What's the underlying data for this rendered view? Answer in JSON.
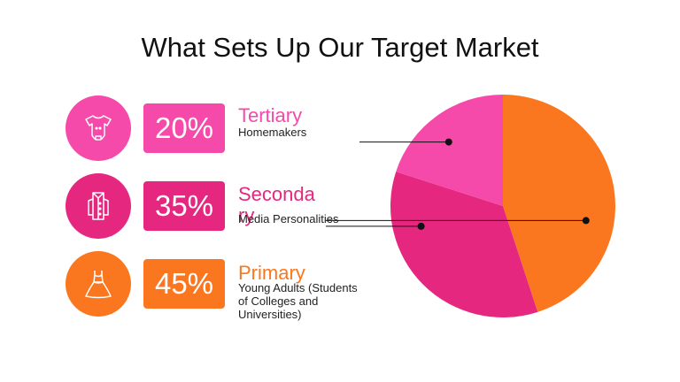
{
  "title": "What Sets Up Our Target Market",
  "segments": [
    {
      "percent": "20%",
      "category": "Tertiary",
      "description": "Homemakers",
      "color": "#f54aaa",
      "icon": "baby-onesie-icon"
    },
    {
      "percent": "35%",
      "category": "Seconda ry",
      "description": "Media Personalities",
      "color": "#e5277f",
      "icon": "shirt-icon"
    },
    {
      "percent": "45%",
      "category": "Primary",
      "description": "Young Adults (Students of Colleges and Universities)",
      "color": "#fa7720",
      "icon": "dress-icon"
    }
  ],
  "chart_data": {
    "type": "pie",
    "title": "What Sets Up Our Target Market",
    "categories": [
      "Tertiary",
      "Secondary",
      "Primary"
    ],
    "values": [
      20,
      35,
      45
    ],
    "colors": [
      "#f54aaa",
      "#e5277f",
      "#fa7720"
    ],
    "start": "12 o'clock",
    "direction": "counter-clockwise from Primary"
  }
}
